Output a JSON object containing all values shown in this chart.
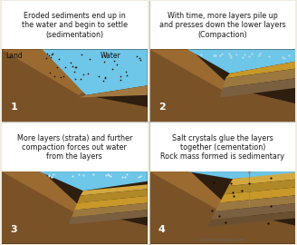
{
  "background_color": "#f0ece0",
  "panel_bg": "#f0ece0",
  "dark_brown": "#2d1e0f",
  "medium_brown": "#5a3a1a",
  "land_brown": "#7a5228",
  "water_blue": "#6ec6e8",
  "water_blue2": "#5ab8de",
  "sediment_yellow": "#c8982a",
  "sediment_yellow2": "#d4a840",
  "dark_sediment": "#7a6040",
  "mid_sediment": "#9a7840",
  "reddish_brown": "#8a5a28",
  "panel_texts": [
    "Eroded sediments end up in\nthe water and begin to settle\n(sedimentation)",
    "With time, more layers pile up\nand presses down the lower layers\n(Compaction)",
    "More layers (strata) and further\ncompaction forces out water\nfrom the layers",
    "Salt crystals glue the layers\ntogether (cementation)\nRock mass formed is sedimentary"
  ],
  "panel_numbers": [
    "1",
    "2",
    "3",
    "4"
  ],
  "watermark": "eschooltoday.com",
  "title_fontsize": 5.8,
  "label_fontsize": 5.5,
  "number_fontsize": 8
}
